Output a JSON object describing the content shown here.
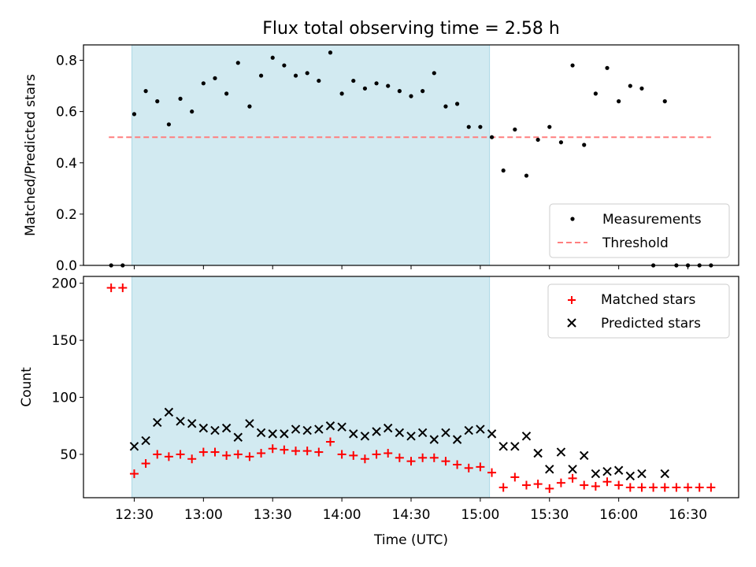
{
  "colors": {
    "shade": "#add8e6",
    "threshold": "#ff7f7f",
    "matched": "#ff0000",
    "predicted": "#000000",
    "measurement": "#000000"
  },
  "chart_data": [
    {
      "type": "scatter",
      "panel": "top",
      "title": "Flux total observing time = 2.58 h",
      "xlabel": "",
      "ylabel": "Matched/Predicted stars",
      "ylim": [
        0,
        0.86
      ],
      "yticks": [
        0.0,
        0.2,
        0.4,
        0.6,
        0.8
      ],
      "ytick_labels": [
        "0.0",
        "0.2",
        "0.4",
        "0.6",
        "0.8"
      ],
      "shaded_interval": [
        "12:29",
        "15:04"
      ],
      "threshold": {
        "name": "Threshold",
        "y": 0.5,
        "x_start": "12:19",
        "x_end": "16:40"
      },
      "legend": [
        "Measurements",
        "Threshold"
      ],
      "legend_position": "lower right",
      "series": [
        {
          "name": "Measurements",
          "x": [
            "12:20",
            "12:25",
            "12:30",
            "12:35",
            "12:40",
            "12:45",
            "12:50",
            "12:55",
            "13:00",
            "13:05",
            "13:10",
            "13:15",
            "13:20",
            "13:25",
            "13:30",
            "13:35",
            "13:40",
            "13:45",
            "13:50",
            "13:55",
            "14:00",
            "14:05",
            "14:10",
            "14:15",
            "14:20",
            "14:25",
            "14:30",
            "14:35",
            "14:40",
            "14:45",
            "14:50",
            "14:55",
            "15:00",
            "15:05",
            "15:10",
            "15:15",
            "15:20",
            "15:25",
            "15:30",
            "15:35",
            "15:40",
            "15:45",
            "15:50",
            "15:55",
            "16:00",
            "16:05",
            "16:10",
            "16:15",
            "16:20",
            "16:25",
            "16:30",
            "16:35",
            "16:40"
          ],
          "y": [
            0.0,
            0.0,
            0.59,
            0.68,
            0.64,
            0.55,
            0.65,
            0.6,
            0.71,
            0.73,
            0.67,
            0.79,
            0.62,
            0.74,
            0.81,
            0.78,
            0.74,
            0.75,
            0.72,
            0.83,
            0.67,
            0.72,
            0.69,
            0.71,
            0.7,
            0.68,
            0.66,
            0.68,
            0.75,
            0.62,
            0.63,
            0.54,
            0.54,
            0.5,
            0.37,
            0.53,
            0.35,
            0.49,
            0.54,
            0.48,
            0.78,
            0.47,
            0.67,
            0.77,
            0.64,
            0.7,
            0.69,
            0.0,
            0.64,
            0.0,
            0.0,
            0.0,
            0.0
          ]
        }
      ]
    },
    {
      "type": "scatter",
      "panel": "bottom",
      "xlabel": "Time (UTC)",
      "ylabel": "Count",
      "ylim": [
        12,
        206
      ],
      "yticks": [
        50,
        100,
        150,
        200
      ],
      "ytick_labels": [
        "50",
        "100",
        "150",
        "200"
      ],
      "xlim": [
        "12:08",
        "16:52"
      ],
      "xticks": [
        "12:30",
        "13:00",
        "13:30",
        "14:00",
        "14:30",
        "15:00",
        "15:30",
        "16:00",
        "16:30"
      ],
      "xtick_labels": [
        "12:30",
        "13:00",
        "13:30",
        "14:00",
        "14:30",
        "15:00",
        "15:30",
        "16:00",
        "16:30"
      ],
      "shaded_interval": [
        "12:29",
        "15:04"
      ],
      "legend": [
        "Matched stars",
        "Predicted stars"
      ],
      "legend_position": "upper right",
      "series": [
        {
          "name": "Matched stars",
          "marker": "plus",
          "x": [
            "12:20",
            "12:25",
            "12:30",
            "12:35",
            "12:40",
            "12:45",
            "12:50",
            "12:55",
            "13:00",
            "13:05",
            "13:10",
            "13:15",
            "13:20",
            "13:25",
            "13:30",
            "13:35",
            "13:40",
            "13:45",
            "13:50",
            "13:55",
            "14:00",
            "14:05",
            "14:10",
            "14:15",
            "14:20",
            "14:25",
            "14:30",
            "14:35",
            "14:40",
            "14:45",
            "14:50",
            "14:55",
            "15:00",
            "15:05",
            "15:10",
            "15:15",
            "15:20",
            "15:25",
            "15:30",
            "15:35",
            "15:40",
            "15:45",
            "15:50",
            "15:55",
            "16:00",
            "16:05",
            "16:10",
            "16:15",
            "16:20",
            "16:25",
            "16:30",
            "16:35",
            "16:40"
          ],
          "y": [
            196,
            196,
            33,
            42,
            50,
            48,
            50,
            46,
            52,
            52,
            49,
            50,
            48,
            51,
            55,
            54,
            53,
            53,
            52,
            61,
            50,
            49,
            46,
            50,
            51,
            47,
            44,
            47,
            47,
            44,
            41,
            38,
            39,
            34,
            21,
            30,
            23,
            24,
            20,
            25,
            29,
            23,
            22,
            26,
            23,
            21,
            21,
            21,
            21,
            21,
            21,
            21,
            21
          ]
        },
        {
          "name": "Predicted stars",
          "marker": "x",
          "x": [
            "12:30",
            "12:35",
            "12:40",
            "12:45",
            "12:50",
            "12:55",
            "13:00",
            "13:05",
            "13:10",
            "13:15",
            "13:20",
            "13:25",
            "13:30",
            "13:35",
            "13:40",
            "13:45",
            "13:50",
            "13:55",
            "14:00",
            "14:05",
            "14:10",
            "14:15",
            "14:20",
            "14:25",
            "14:30",
            "14:35",
            "14:40",
            "14:45",
            "14:50",
            "14:55",
            "15:00",
            "15:05",
            "15:10",
            "15:15",
            "15:20",
            "15:25",
            "15:30",
            "15:35",
            "15:40",
            "15:45",
            "15:50",
            "15:55",
            "16:00",
            "16:05",
            "16:10",
            "16:20"
          ],
          "y": [
            57,
            62,
            78,
            87,
            79,
            77,
            73,
            71,
            73,
            65,
            77,
            69,
            68,
            68,
            72,
            71,
            72,
            75,
            74,
            68,
            66,
            70,
            73,
            69,
            66,
            69,
            63,
            69,
            63,
            71,
            72,
            68,
            57,
            57,
            66,
            51,
            37,
            52,
            37,
            49,
            33,
            35,
            36,
            31,
            33,
            33
          ]
        }
      ]
    }
  ]
}
